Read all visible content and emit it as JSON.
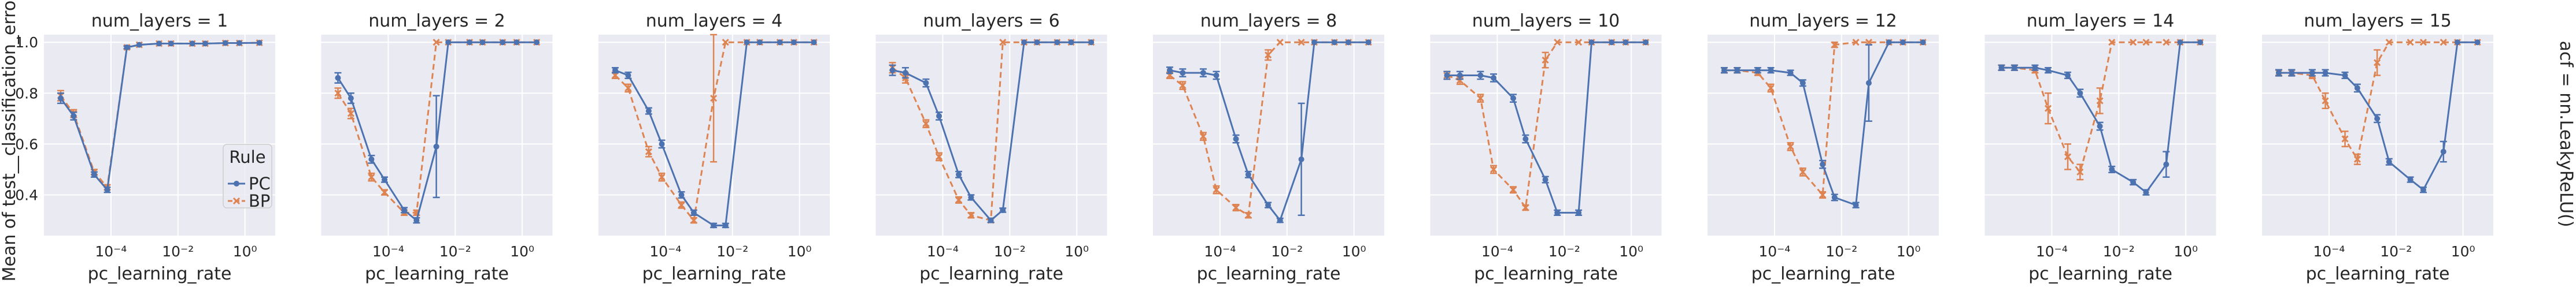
{
  "figure": {
    "ylabel": "Mean of test__classification_error",
    "row_label": "acf = nn.LeakyReLU()"
  },
  "legend": {
    "title": "Rule",
    "entries": [
      {
        "name": "PC",
        "color": "#4c72b0",
        "style": "solid",
        "marker": "circle"
      },
      {
        "name": "BP",
        "color": "#dd8452",
        "style": "dashed",
        "marker": "x"
      }
    ],
    "placement": "lower-right of first panel"
  },
  "colors": {
    "panel_bg": "#eaeaf2",
    "grid": "#ffffff",
    "pc": "#4c72b0",
    "bp": "#dd8452"
  },
  "chart_data": {
    "type": "line",
    "x_scale": "log",
    "xlabel": "pc_learning_rate",
    "xlim": [
      1e-06,
      8
    ],
    "ylim": [
      0.24,
      1.03
    ],
    "x_ticks": [
      0.0001,
      0.01,
      1
    ],
    "x_tick_labels": [
      "10⁻⁴",
      "10⁻²",
      "10⁰"
    ],
    "y_ticks": [
      0.4,
      0.6,
      0.8,
      1.0
    ],
    "y_tick_labels": [
      "0.4",
      "0.6",
      "0.8",
      "1.0"
    ],
    "grid": true,
    "panels": [
      {
        "title": "num_layers = 1",
        "series": [
          {
            "name": "PC",
            "x": [
              3.16e-06,
              7.7e-06,
              3.16e-05,
              7.77e-05,
              0.0003,
              0.0007,
              0.00273,
              0.0062,
              0.0268,
              0.0652,
              0.26,
              0.68,
              2.7
            ],
            "y": [
              0.78,
              0.71,
              0.48,
              0.42,
              0.98,
              0.99,
              0.995,
              0.995,
              0.995,
              0.995,
              0.997,
              0.997,
              0.998
            ],
            "err": [
              0.02,
              0.015,
              0.01,
              0.01,
              0.005,
              0.003,
              0.002,
              0.002,
              0.002,
              0.002,
              0.002,
              0.002,
              0.002
            ]
          },
          {
            "name": "BP",
            "x": [
              3.16e-06,
              7.7e-06,
              3.16e-05,
              7.77e-05,
              0.0003,
              0.0007,
              0.00273,
              0.0062,
              0.0268,
              0.0652,
              0.26,
              0.68,
              2.7
            ],
            "y": [
              0.79,
              0.72,
              0.49,
              0.43,
              0.98,
              0.99,
              0.995,
              0.995,
              0.995,
              0.995,
              0.997,
              0.997,
              0.998
            ],
            "err": [
              0.02,
              0.015,
              0.01,
              0.01,
              0.005,
              0.003,
              0.002,
              0.002,
              0.002,
              0.002,
              0.002,
              0.002,
              0.002
            ]
          }
        ]
      },
      {
        "title": "num_layers = 2",
        "series": [
          {
            "name": "PC",
            "x": [
              3.16e-06,
              7.7e-06,
              3.16e-05,
              7.77e-05,
              0.0003,
              0.0007,
              0.00273,
              0.0062,
              0.0268,
              0.0652,
              0.26,
              0.68,
              2.7
            ],
            "y": [
              0.86,
              0.78,
              0.54,
              0.46,
              0.34,
              0.3,
              0.59,
              1.0,
              1.0,
              1.0,
              1.0,
              1.0,
              1.0
            ],
            "err": [
              0.02,
              0.02,
              0.015,
              0.01,
              0.01,
              0.01,
              0.2,
              0.003,
              0.002,
              0.002,
              0.002,
              0.002,
              0.002
            ]
          },
          {
            "name": "BP",
            "x": [
              3.16e-06,
              7.7e-06,
              3.16e-05,
              7.77e-05,
              0.0003,
              0.0007,
              0.00273,
              0.0062,
              0.0268,
              0.0652,
              0.26,
              0.68,
              2.7
            ],
            "y": [
              0.8,
              0.72,
              0.47,
              0.41,
              0.33,
              0.33,
              1.0,
              1.0,
              1.0,
              1.0,
              1.0,
              1.0,
              1.0
            ],
            "err": [
              0.02,
              0.02,
              0.015,
              0.01,
              0.01,
              0.01,
              0.003,
              0.003,
              0.002,
              0.002,
              0.002,
              0.002,
              0.002
            ]
          }
        ]
      },
      {
        "title": "num_layers = 4",
        "series": [
          {
            "name": "PC",
            "x": [
              3.16e-06,
              7.7e-06,
              3.16e-05,
              7.77e-05,
              0.0003,
              0.0007,
              0.00273,
              0.0062,
              0.0268,
              0.0652,
              0.26,
              0.68,
              2.7
            ],
            "y": [
              0.89,
              0.87,
              0.73,
              0.6,
              0.4,
              0.33,
              0.28,
              0.28,
              1.0,
              1.0,
              1.0,
              1.0,
              1.0
            ],
            "err": [
              0.01,
              0.012,
              0.012,
              0.015,
              0.012,
              0.01,
              0.008,
              0.008,
              0.003,
              0.002,
              0.002,
              0.002,
              0.002
            ]
          },
          {
            "name": "BP",
            "x": [
              3.16e-06,
              7.7e-06,
              3.16e-05,
              7.77e-05,
              0.0003,
              0.0007,
              0.00273,
              0.0062,
              0.0268,
              0.0652,
              0.26,
              0.68,
              2.7
            ],
            "y": [
              0.87,
              0.82,
              0.57,
              0.47,
              0.36,
              0.3,
              0.78,
              1.0,
              1.0,
              1.0,
              1.0,
              1.0,
              1.0
            ],
            "err": [
              0.012,
              0.015,
              0.02,
              0.015,
              0.012,
              0.01,
              0.25,
              0.003,
              0.002,
              0.002,
              0.002,
              0.002,
              0.002
            ]
          }
        ]
      },
      {
        "title": "num_layers = 6",
        "series": [
          {
            "name": "PC",
            "x": [
              3.16e-06,
              7.7e-06,
              3.16e-05,
              7.77e-05,
              0.0003,
              0.0007,
              0.00273,
              0.0062,
              0.0268,
              0.0652,
              0.26,
              0.68,
              2.7
            ],
            "y": [
              0.89,
              0.88,
              0.84,
              0.71,
              0.48,
              0.39,
              0.3,
              0.34,
              1.0,
              1.0,
              1.0,
              1.0,
              1.0
            ],
            "err": [
              0.02,
              0.02,
              0.015,
              0.015,
              0.012,
              0.01,
              0.008,
              0.008,
              0.003,
              0.002,
              0.002,
              0.002,
              0.002
            ]
          },
          {
            "name": "BP",
            "x": [
              3.16e-06,
              7.7e-06,
              3.16e-05,
              7.77e-05,
              0.0003,
              0.0007,
              0.00273,
              0.0062,
              0.0268,
              0.0652,
              0.26,
              0.68,
              2.7
            ],
            "y": [
              0.9,
              0.86,
              0.68,
              0.55,
              0.38,
              0.32,
              0.3,
              1.0,
              1.0,
              1.0,
              1.0,
              1.0,
              1.0
            ],
            "err": [
              0.02,
              0.02,
              0.015,
              0.015,
              0.012,
              0.01,
              0.008,
              0.003,
              0.002,
              0.002,
              0.002,
              0.002,
              0.002
            ]
          }
        ]
      },
      {
        "title": "num_layers = 8",
        "series": [
          {
            "name": "PC",
            "x": [
              3.16e-06,
              7.7e-06,
              3.16e-05,
              7.77e-05,
              0.0003,
              0.0007,
              0.00273,
              0.0062,
              0.0268,
              0.0652,
              0.26,
              0.68,
              2.7
            ],
            "y": [
              0.89,
              0.88,
              0.88,
              0.87,
              0.62,
              0.48,
              0.36,
              0.3,
              0.54,
              1.0,
              1.0,
              1.0,
              1.0
            ],
            "err": [
              0.012,
              0.015,
              0.015,
              0.015,
              0.015,
              0.012,
              0.01,
              0.008,
              0.22,
              0.003,
              0.002,
              0.002,
              0.002
            ]
          },
          {
            "name": "BP",
            "x": [
              3.16e-06,
              7.7e-06,
              3.16e-05,
              7.77e-05,
              0.0003,
              0.0007,
              0.00273,
              0.0062,
              0.0268,
              0.0652,
              0.26,
              0.68,
              2.7
            ],
            "y": [
              0.87,
              0.83,
              0.63,
              0.42,
              0.35,
              0.32,
              0.95,
              1.0,
              1.0,
              1.0,
              1.0,
              1.0,
              1.0
            ],
            "err": [
              0.012,
              0.015,
              0.015,
              0.015,
              0.012,
              0.01,
              0.02,
              0.003,
              0.002,
              0.002,
              0.002,
              0.002,
              0.002
            ]
          }
        ]
      },
      {
        "title": "num_layers = 10",
        "series": [
          {
            "name": "PC",
            "x": [
              3.16e-06,
              7.7e-06,
              3.16e-05,
              7.77e-05,
              0.0003,
              0.0007,
              0.00273,
              0.0062,
              0.0268,
              0.0652,
              0.26,
              0.68,
              2.7
            ],
            "y": [
              0.87,
              0.87,
              0.87,
              0.86,
              0.78,
              0.62,
              0.46,
              0.33,
              0.33,
              1.0,
              1.0,
              1.0,
              1.0
            ],
            "err": [
              0.015,
              0.015,
              0.015,
              0.015,
              0.015,
              0.015,
              0.012,
              0.01,
              0.01,
              0.003,
              0.002,
              0.002,
              0.002
            ]
          },
          {
            "name": "BP",
            "x": [
              3.16e-06,
              7.7e-06,
              3.16e-05,
              7.77e-05,
              0.0003,
              0.0007,
              0.00273,
              0.0062,
              0.0268,
              0.0652,
              0.26,
              0.68,
              2.7
            ],
            "y": [
              0.87,
              0.85,
              0.78,
              0.5,
              0.42,
              0.35,
              0.93,
              1.0,
              1.0,
              1.0,
              1.0,
              1.0,
              1.0
            ],
            "err": [
              0.015,
              0.015,
              0.015,
              0.015,
              0.012,
              0.01,
              0.03,
              0.003,
              0.002,
              0.002,
              0.002,
              0.002,
              0.002
            ]
          }
        ]
      },
      {
        "title": "num_layers = 12",
        "series": [
          {
            "name": "PC",
            "x": [
              3.16e-06,
              7.7e-06,
              3.16e-05,
              7.77e-05,
              0.0003,
              0.0007,
              0.00273,
              0.0062,
              0.0268,
              0.0652,
              0.26,
              0.68,
              2.7
            ],
            "y": [
              0.89,
              0.89,
              0.89,
              0.89,
              0.88,
              0.84,
              0.52,
              0.39,
              0.36,
              0.84,
              1.0,
              1.0,
              1.0
            ],
            "err": [
              0.01,
              0.01,
              0.01,
              0.01,
              0.01,
              0.012,
              0.015,
              0.012,
              0.01,
              0.15,
              0.003,
              0.002,
              0.002
            ]
          },
          {
            "name": "BP",
            "x": [
              3.16e-06,
              7.7e-06,
              3.16e-05,
              7.77e-05,
              0.0003,
              0.0007,
              0.00273,
              0.0062,
              0.0268,
              0.0652,
              0.26,
              0.68,
              2.7
            ],
            "y": [
              0.89,
              0.89,
              0.88,
              0.82,
              0.59,
              0.49,
              0.4,
              0.99,
              1.0,
              1.0,
              1.0,
              1.0,
              1.0
            ],
            "err": [
              0.01,
              0.01,
              0.01,
              0.015,
              0.015,
              0.015,
              0.012,
              0.01,
              0.002,
              0.002,
              0.002,
              0.002,
              0.002
            ]
          }
        ]
      },
      {
        "title": "num_layers = 14",
        "series": [
          {
            "name": "PC",
            "x": [
              3.16e-06,
              7.7e-06,
              3.16e-05,
              7.77e-05,
              0.0003,
              0.0007,
              0.00273,
              0.0062,
              0.0268,
              0.0652,
              0.26,
              0.68,
              2.7
            ],
            "y": [
              0.9,
              0.9,
              0.9,
              0.89,
              0.87,
              0.8,
              0.67,
              0.5,
              0.45,
              0.41,
              0.52,
              1.0,
              1.0
            ],
            "err": [
              0.01,
              0.01,
              0.01,
              0.01,
              0.012,
              0.015,
              0.015,
              0.012,
              0.01,
              0.01,
              0.05,
              0.003,
              0.002
            ]
          },
          {
            "name": "BP",
            "x": [
              3.16e-06,
              7.7e-06,
              3.16e-05,
              7.77e-05,
              0.0003,
              0.0007,
              0.00273,
              0.0062,
              0.0268,
              0.0652,
              0.26,
              0.68,
              2.7
            ],
            "y": [
              0.9,
              0.9,
              0.89,
              0.74,
              0.55,
              0.49,
              0.77,
              1.0,
              1.0,
              1.0,
              1.0,
              1.0,
              1.0
            ],
            "err": [
              0.01,
              0.01,
              0.01,
              0.06,
              0.05,
              0.03,
              0.05,
              0.003,
              0.002,
              0.002,
              0.002,
              0.002,
              0.002
            ]
          }
        ]
      },
      {
        "title": "num_layers = 15",
        "series": [
          {
            "name": "PC",
            "x": [
              3.16e-06,
              7.7e-06,
              3.16e-05,
              7.77e-05,
              0.0003,
              0.0007,
              0.00273,
              0.0062,
              0.0268,
              0.0652,
              0.26,
              0.68,
              2.7
            ],
            "y": [
              0.88,
              0.88,
              0.88,
              0.88,
              0.87,
              0.82,
              0.7,
              0.53,
              0.46,
              0.42,
              0.57,
              1.0,
              1.0
            ],
            "err": [
              0.012,
              0.012,
              0.012,
              0.012,
              0.012,
              0.015,
              0.015,
              0.012,
              0.01,
              0.01,
              0.04,
              0.003,
              0.002
            ]
          },
          {
            "name": "BP",
            "x": [
              3.16e-06,
              7.7e-06,
              3.16e-05,
              7.77e-05,
              0.0003,
              0.0007,
              0.00273,
              0.0062,
              0.0268,
              0.0652,
              0.26,
              0.68,
              2.7
            ],
            "y": [
              0.88,
              0.88,
              0.87,
              0.77,
              0.62,
              0.54,
              0.92,
              1.0,
              1.0,
              1.0,
              1.0,
              1.0,
              1.0
            ],
            "err": [
              0.012,
              0.012,
              0.012,
              0.03,
              0.03,
              0.02,
              0.05,
              0.003,
              0.002,
              0.002,
              0.002,
              0.002,
              0.002
            ]
          }
        ]
      }
    ]
  }
}
